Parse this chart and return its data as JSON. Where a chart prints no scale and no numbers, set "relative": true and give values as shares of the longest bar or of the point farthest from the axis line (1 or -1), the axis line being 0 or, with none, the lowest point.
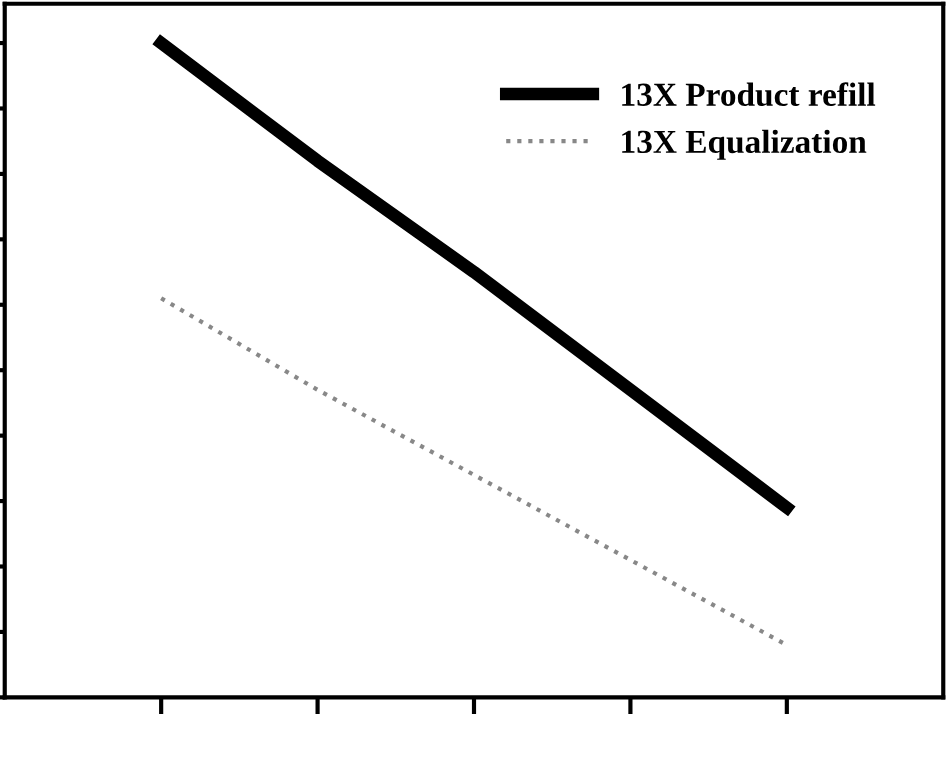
{
  "chart_data": {
    "type": "line",
    "relative": true,
    "categories": [
      null,
      null,
      null,
      null,
      null
    ],
    "series": [
      {
        "name": "13X Product refill",
        "color": "#000000",
        "line_style": "solid",
        "values": [
          1,
          0.82,
          0.65,
          0.47,
          0.29
        ]
      },
      {
        "name": "13X Equalization",
        "color": "#888888",
        "line_style": "dotted",
        "values": [
          0.61,
          0.47,
          0.34,
          0.21,
          0.08
        ]
      }
    ],
    "legend": "top right",
    "marker": "none",
    "grid": false
  }
}
